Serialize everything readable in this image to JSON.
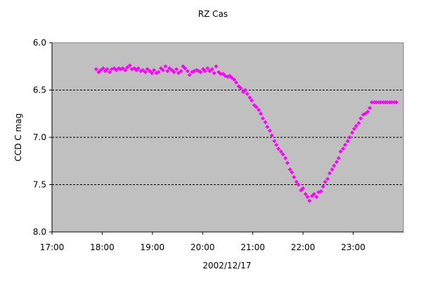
{
  "chart_data": {
    "type": "scatter",
    "title": "RZ Cas",
    "xlabel": "2002/12/17",
    "ylabel": "CCD C mag",
    "x_tick_labels": [
      "17:00",
      "18:00",
      "19:00",
      "20:00",
      "21:00",
      "22:00",
      "23:00"
    ],
    "y_tick_labels": [
      "6.0",
      "6.5",
      "7.0",
      "7.5",
      "8.0"
    ],
    "xlim": [
      17.0,
      24.0
    ],
    "ylim": [
      6.0,
      8.0
    ],
    "y_inverted": true,
    "gridlines": "horizontal-dashed",
    "grid_values": [
      6.5,
      7.0,
      7.5
    ],
    "colors": {
      "plot_bg": "#c0c0c0",
      "marker": "#ff00ff",
      "grid": "#000000"
    },
    "series": [
      {
        "x": [
          17.88,
          17.93,
          17.97,
          18.02,
          18.06,
          18.1,
          18.15,
          18.19,
          18.24,
          18.28,
          18.33,
          18.37,
          18.41,
          18.46,
          18.5,
          18.55,
          18.59,
          18.64,
          18.68,
          18.72,
          18.77,
          18.81,
          18.86,
          18.9,
          18.95,
          18.99,
          19.03,
          19.08,
          19.12,
          19.17,
          19.21,
          19.26,
          19.3,
          19.34,
          19.39,
          19.43,
          19.48,
          19.52,
          19.57,
          19.61,
          19.65,
          19.7,
          19.74,
          19.79,
          19.83,
          19.88,
          19.92,
          19.96,
          20.01,
          20.05,
          20.1,
          20.14,
          20.19,
          20.23,
          20.27,
          20.32,
          20.36,
          20.41,
          20.45,
          20.5,
          20.54,
          20.58,
          20.63,
          20.67,
          20.72,
          20.76,
          20.81,
          20.85,
          20.89,
          20.94,
          20.98,
          21.03,
          21.07,
          21.12,
          21.16,
          21.2,
          21.25,
          21.29,
          21.34,
          21.38,
          21.43,
          21.47,
          21.51,
          21.56,
          21.6,
          21.65,
          21.69,
          21.74,
          21.78,
          21.82,
          21.87,
          21.91,
          21.96,
          22.0,
          22.05,
          22.09,
          22.13,
          22.18,
          22.22,
          22.27,
          22.31,
          22.36,
          22.4,
          22.44,
          22.49,
          22.53,
          22.58,
          22.62,
          22.67,
          22.71,
          22.75,
          22.8,
          22.84,
          22.89,
          22.93,
          22.98,
          23.02,
          23.06,
          23.11,
          23.15,
          23.2,
          23.24,
          23.29,
          23.33,
          23.37,
          23.42,
          23.46,
          23.51,
          23.55,
          23.6,
          23.64,
          23.68,
          23.73,
          23.77,
          23.82,
          23.86
        ],
        "y": [
          6.28,
          6.31,
          6.29,
          6.27,
          6.3,
          6.28,
          6.31,
          6.28,
          6.27,
          6.29,
          6.27,
          6.28,
          6.27,
          6.29,
          6.26,
          6.24,
          6.28,
          6.27,
          6.29,
          6.27,
          6.3,
          6.29,
          6.31,
          6.28,
          6.3,
          6.32,
          6.29,
          6.32,
          6.31,
          6.27,
          6.29,
          6.25,
          6.3,
          6.27,
          6.29,
          6.31,
          6.28,
          6.32,
          6.3,
          6.25,
          6.27,
          6.3,
          6.34,
          6.31,
          6.3,
          6.29,
          6.3,
          6.31,
          6.28,
          6.3,
          6.27,
          6.3,
          6.28,
          6.32,
          6.25,
          6.31,
          6.33,
          6.33,
          6.35,
          6.36,
          6.35,
          6.37,
          6.39,
          6.42,
          6.46,
          6.48,
          6.52,
          6.5,
          6.54,
          6.58,
          6.61,
          6.66,
          6.68,
          6.71,
          6.75,
          6.8,
          6.84,
          6.89,
          6.93,
          6.98,
          7.04,
          7.08,
          7.12,
          7.15,
          7.18,
          7.22,
          7.27,
          7.34,
          7.37,
          7.42,
          7.47,
          7.5,
          7.56,
          7.54,
          7.6,
          7.63,
          7.67,
          7.62,
          7.6,
          7.63,
          7.58,
          7.57,
          7.52,
          7.47,
          7.44,
          7.38,
          7.34,
          7.3,
          7.26,
          7.22,
          7.15,
          7.12,
          7.08,
          7.04,
          7.0,
          6.95,
          6.91,
          6.88,
          6.85,
          6.8,
          6.76,
          6.75,
          6.73,
          6.69,
          6.63,
          6.63,
          6.63,
          6.63,
          6.63,
          6.63,
          6.63,
          6.63,
          6.63,
          6.63,
          6.63,
          6.63
        ]
      }
    ]
  }
}
